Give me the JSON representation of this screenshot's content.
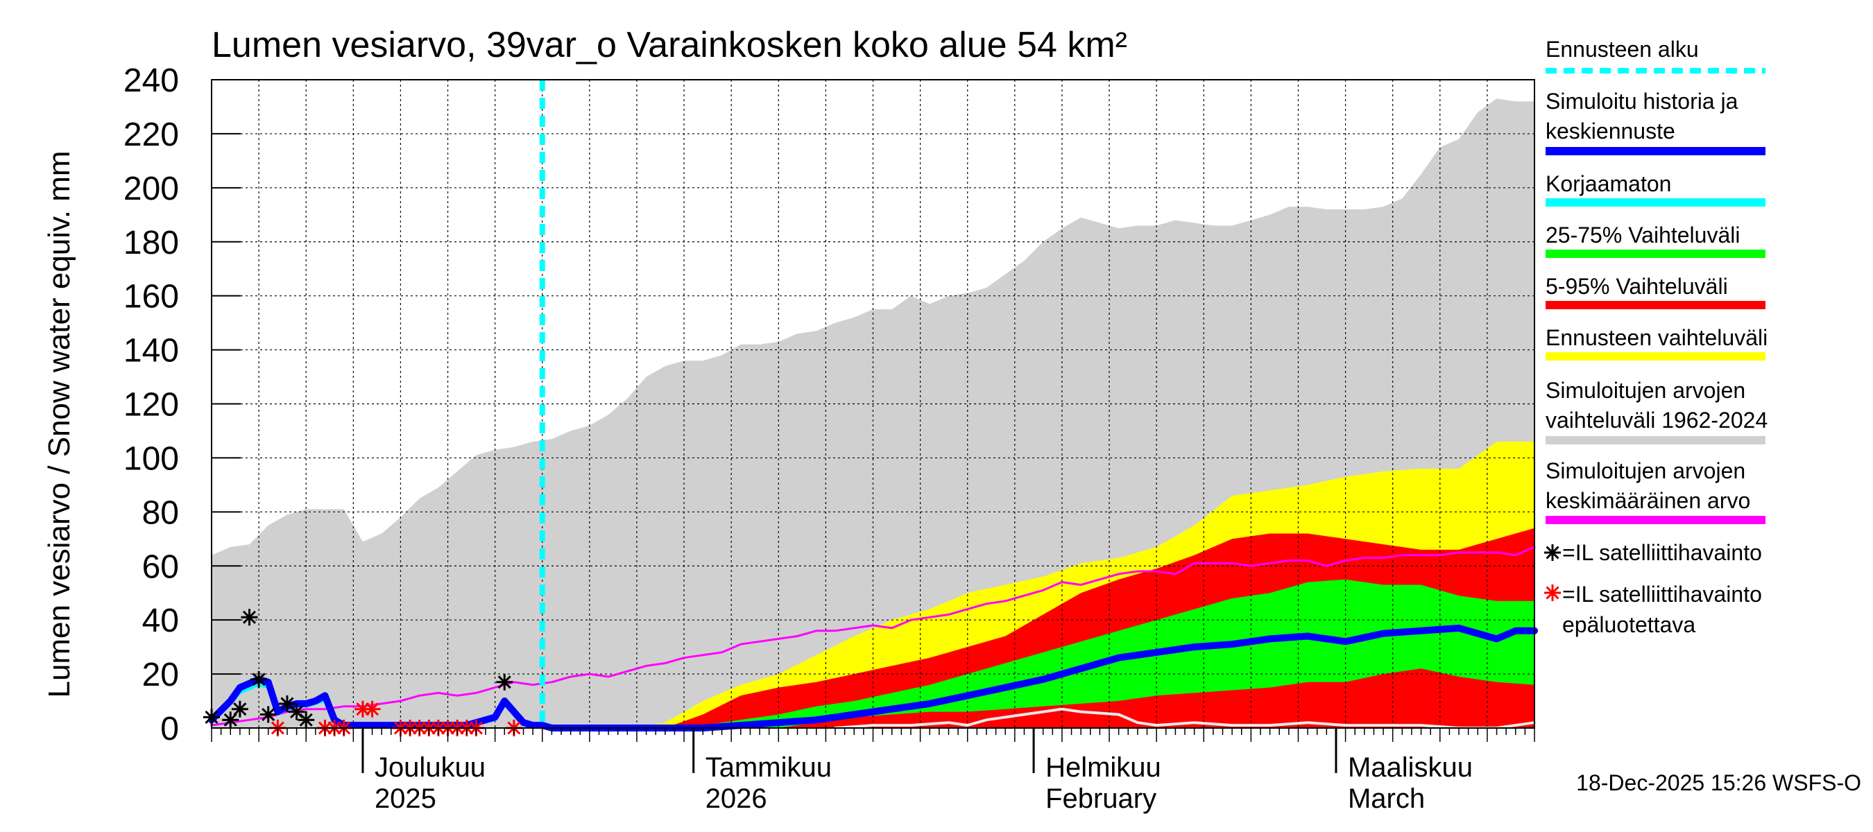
{
  "chart_data": {
    "type": "area",
    "title": "Lumen vesiarvo, 39var_o Varainkosken koko alue 54 km²",
    "ylabel": "Lumen vesiarvo / Snow water equiv.    mm",
    "xlabel": "",
    "ylim": [
      0,
      240
    ],
    "yticks": [
      0,
      20,
      40,
      60,
      80,
      100,
      120,
      140,
      160,
      180,
      200,
      220,
      240
    ],
    "x_start_day": 0,
    "x_end_day": 140,
    "forecast_start_day": 35,
    "month_labels": [
      {
        "day": 16,
        "line1": "Joulukuu",
        "line2": "2025"
      },
      {
        "day": 51,
        "line1": "Tammikuu",
        "line2": "2026"
      },
      {
        "day": 87,
        "line1": "Helmikuu",
        "line2": "February"
      },
      {
        "day": 119,
        "line1": "Maaliskuu",
        "line2": "March"
      }
    ],
    "series": [
      {
        "name": "Simuloitujen arvojen vaihteluväli 1962-2024",
        "kind": "band",
        "color": "#d0d0d0",
        "x": [
          0,
          2,
          4,
          6,
          8,
          10,
          12,
          14,
          16,
          18,
          20,
          22,
          24,
          26,
          28,
          30,
          32,
          34,
          36,
          38,
          40,
          42,
          44,
          46,
          48,
          50,
          52,
          54,
          56,
          58,
          60,
          62,
          64,
          66,
          68,
          70,
          72,
          74,
          76,
          78,
          80,
          82,
          84,
          86,
          88,
          90,
          92,
          94,
          96,
          98,
          100,
          102,
          104,
          106,
          108,
          110,
          112,
          114,
          116,
          118,
          120,
          122,
          124,
          126,
          128,
          130,
          132,
          134,
          136,
          138,
          140
        ],
        "lower": [
          0,
          0,
          0,
          0,
          0,
          0,
          0,
          0,
          0,
          0,
          0,
          0,
          0,
          0,
          0,
          0,
          0,
          0,
          0,
          0,
          0,
          0,
          0,
          0,
          0,
          0,
          0,
          0,
          0,
          0,
          0,
          0,
          0,
          0,
          0,
          0,
          0,
          0,
          0,
          0,
          0,
          0,
          0,
          0,
          0,
          0,
          0,
          0,
          0,
          0,
          0,
          0,
          0,
          0,
          0,
          0,
          0,
          0,
          0,
          0,
          0,
          0,
          0,
          0,
          0,
          0,
          0,
          0,
          0,
          0,
          0
        ],
        "upper": [
          64,
          67,
          68,
          75,
          79,
          81,
          81,
          81,
          69,
          72,
          78,
          85,
          89,
          95,
          101,
          103,
          104,
          106,
          107,
          110,
          112,
          116,
          122,
          130,
          134,
          136,
          136,
          138,
          142,
          142,
          143,
          146,
          147,
          150,
          152,
          155,
          155,
          160,
          157,
          160,
          161,
          163,
          168,
          173,
          180,
          185,
          189,
          187,
          185,
          186,
          186,
          188,
          187,
          186,
          186,
          188,
          190,
          193,
          193,
          192,
          192,
          192,
          193,
          196,
          205,
          215,
          218,
          228,
          233,
          232,
          232
        ]
      },
      {
        "name": "Ennusteen vaihteluväli",
        "kind": "band",
        "color": "#ffff00",
        "x": [
          35,
          40,
          44,
          48,
          52,
          56,
          60,
          64,
          68,
          72,
          76,
          80,
          84,
          88,
          92,
          96,
          100,
          104,
          108,
          112,
          116,
          120,
          124,
          128,
          132,
          136,
          140
        ],
        "lower": [
          0,
          0,
          0,
          0,
          0,
          0,
          0,
          0,
          0,
          0,
          0,
          0,
          0,
          0,
          0,
          0,
          0,
          0,
          0,
          0,
          0,
          0,
          0,
          0,
          0,
          0,
          0
        ],
        "upper": [
          0,
          0,
          0,
          2,
          10,
          16,
          20,
          27,
          34,
          40,
          44,
          50,
          53,
          56,
          61,
          63,
          67,
          75,
          86,
          88,
          90,
          93,
          95,
          96,
          96,
          106,
          106
        ]
      },
      {
        "name": "5-95% Vaihteluväli",
        "kind": "band",
        "color": "#ff0000",
        "x": [
          35,
          40,
          44,
          48,
          52,
          56,
          60,
          64,
          68,
          72,
          76,
          80,
          84,
          88,
          92,
          96,
          100,
          104,
          108,
          112,
          116,
          120,
          124,
          128,
          132,
          136,
          140
        ],
        "lower": [
          0,
          0,
          0,
          0,
          0,
          0,
          0,
          0,
          0,
          0,
          0,
          0,
          0,
          0,
          0,
          0,
          0,
          0,
          0,
          0,
          0,
          0,
          0,
          0,
          0,
          0,
          0
        ],
        "upper": [
          0,
          0,
          0,
          0,
          5,
          12,
          15,
          17,
          20,
          23,
          26,
          30,
          34,
          42,
          50,
          55,
          59,
          64,
          70,
          72,
          72,
          70,
          68,
          66,
          66,
          70,
          74
        ]
      },
      {
        "name": "25-75% Vaihteluväli",
        "kind": "band",
        "color": "#00ff00",
        "x": [
          35,
          40,
          44,
          48,
          52,
          56,
          60,
          64,
          68,
          72,
          76,
          80,
          84,
          88,
          92,
          96,
          100,
          104,
          108,
          112,
          116,
          120,
          124,
          128,
          132,
          136,
          140
        ],
        "lower": [
          0,
          0,
          0,
          0,
          0,
          0,
          0,
          2,
          4,
          5,
          6,
          6,
          7,
          8,
          9,
          10,
          12,
          13,
          14,
          15,
          17,
          17,
          20,
          22,
          19,
          17,
          16
        ],
        "upper": [
          0,
          0,
          0,
          0,
          1,
          3,
          5,
          8,
          10,
          13,
          16,
          20,
          24,
          28,
          32,
          36,
          40,
          44,
          48,
          50,
          54,
          55,
          53,
          53,
          49,
          47,
          47
        ]
      },
      {
        "name": "Simuloitujen arvojen keskimääräinen arvo",
        "kind": "line",
        "color": "#ff00ff",
        "width": 3,
        "x": [
          0,
          4,
          6,
          8,
          10,
          12,
          14,
          16,
          18,
          20,
          22,
          24,
          26,
          28,
          30,
          32,
          34,
          36,
          38,
          40,
          42,
          44,
          46,
          48,
          50,
          52,
          54,
          56,
          58,
          60,
          62,
          64,
          66,
          68,
          70,
          72,
          74,
          76,
          78,
          80,
          82,
          84,
          86,
          88,
          90,
          92,
          94,
          96,
          98,
          100,
          102,
          104,
          106,
          108,
          110,
          112,
          114,
          116,
          118,
          120,
          122,
          124,
          126,
          128,
          130,
          132,
          134,
          136,
          138,
          140
        ],
        "y": [
          1,
          3,
          4,
          6,
          7,
          7,
          8,
          8,
          9,
          10,
          12,
          13,
          12,
          13,
          15,
          17,
          16,
          17,
          19,
          20,
          19,
          21,
          23,
          24,
          26,
          27,
          28,
          31,
          32,
          33,
          34,
          36,
          36,
          37,
          38,
          37,
          40,
          41,
          42,
          44,
          46,
          47,
          49,
          51,
          54,
          53,
          55,
          57,
          58,
          58,
          57,
          61,
          61,
          61,
          60,
          61,
          62,
          62,
          60,
          62,
          63,
          63,
          64,
          64,
          64,
          65,
          65,
          65,
          64,
          67
        ]
      },
      {
        "name": "Korjaamaton",
        "kind": "line",
        "color": "#00ffff",
        "width": 4,
        "x": [
          0,
          2,
          3,
          5,
          6,
          7,
          8,
          9,
          10,
          11,
          12,
          13,
          14,
          15,
          16,
          17,
          18,
          27,
          30,
          31,
          32,
          33,
          34,
          35,
          36,
          37,
          38,
          40
        ],
        "y": [
          3,
          9,
          13,
          16,
          15,
          5,
          7,
          8,
          8,
          9,
          10,
          2,
          1,
          1,
          1,
          1,
          1,
          1,
          3,
          9,
          5,
          2,
          1,
          1,
          1,
          0,
          0,
          0
        ]
      },
      {
        "name": "Simuloitu historia ja keskiennuste",
        "kind": "line",
        "color": "#0000ff",
        "width": 10,
        "x": [
          0,
          2,
          3,
          5,
          6,
          7,
          8,
          9,
          10,
          11,
          12,
          13,
          14,
          15,
          16,
          17,
          18,
          27,
          30,
          31,
          32,
          33,
          34,
          35,
          36,
          38,
          40,
          44,
          48,
          52,
          56,
          60,
          64,
          68,
          72,
          76,
          80,
          84,
          88,
          92,
          96,
          100,
          104,
          108,
          112,
          116,
          120,
          124,
          128,
          132,
          136,
          138,
          140
        ],
        "y": [
          3,
          10,
          15,
          18,
          17,
          6,
          8,
          9,
          9,
          10,
          12,
          3,
          1,
          1,
          1,
          1,
          1,
          1,
          4,
          10,
          6,
          2,
          1,
          1,
          0,
          0,
          0,
          0,
          0,
          0,
          1,
          2,
          3,
          5,
          7,
          9,
          12,
          15,
          18,
          22,
          26,
          28,
          30,
          31,
          33,
          34,
          32,
          35,
          36,
          37,
          33,
          36,
          36
        ]
      },
      {
        "name": "Low member",
        "kind": "line",
        "color": "#e8e8e8",
        "width": 4,
        "x": [
          66,
          70,
          74,
          78,
          80,
          82,
          84,
          86,
          88,
          90,
          92,
          96,
          98,
          100,
          104,
          108,
          112,
          116,
          120,
          124,
          128,
          132,
          136,
          140
        ],
        "y": [
          0,
          1,
          1,
          2,
          1,
          3,
          4,
          5,
          6,
          7,
          6,
          5,
          2,
          1,
          2,
          1,
          1,
          2,
          1,
          1,
          1,
          0,
          0,
          2
        ]
      }
    ],
    "observations_black": [
      {
        "x": 0,
        "y": 4
      },
      {
        "x": 2,
        "y": 3
      },
      {
        "x": 3,
        "y": 7
      },
      {
        "x": 4,
        "y": 41
      },
      {
        "x": 5,
        "y": 18
      },
      {
        "x": 6,
        "y": 5
      },
      {
        "x": 8,
        "y": 9
      },
      {
        "x": 9,
        "y": 6
      },
      {
        "x": 10,
        "y": 3
      },
      {
        "x": 31,
        "y": 17
      }
    ],
    "observations_red": [
      {
        "x": 7,
        "y": 0
      },
      {
        "x": 12,
        "y": 0
      },
      {
        "x": 13,
        "y": 0
      },
      {
        "x": 14,
        "y": 0
      },
      {
        "x": 16,
        "y": 7
      },
      {
        "x": 17,
        "y": 7
      },
      {
        "x": 20,
        "y": 0
      },
      {
        "x": 21,
        "y": 0
      },
      {
        "x": 22,
        "y": 0
      },
      {
        "x": 23,
        "y": 0
      },
      {
        "x": 24,
        "y": 0
      },
      {
        "x": 25,
        "y": 0
      },
      {
        "x": 26,
        "y": 0
      },
      {
        "x": 27,
        "y": 0
      },
      {
        "x": 28,
        "y": 0
      },
      {
        "x": 32,
        "y": 0
      }
    ]
  },
  "legend": [
    {
      "kind": "dash",
      "color": "#00ffff",
      "lines": [
        "Ennusteen alku"
      ]
    },
    {
      "kind": "line",
      "color": "#0000ff",
      "lines": [
        "Simuloitu historia ja",
        "keskiennuste"
      ]
    },
    {
      "kind": "line",
      "color": "#00ffff",
      "lines": [
        "Korjaamaton"
      ]
    },
    {
      "kind": "line",
      "color": "#00ff00",
      "lines": [
        "25-75% Vaihteluväli"
      ]
    },
    {
      "kind": "line",
      "color": "#ff0000",
      "lines": [
        "5-95% Vaihteluväli"
      ]
    },
    {
      "kind": "line",
      "color": "#ffff00",
      "lines": [
        "Ennusteen vaihteluväli"
      ]
    },
    {
      "kind": "line",
      "color": "#d0d0d0",
      "lines": [
        "Simuloitujen arvojen",
        "vaihteluväli 1962-2024"
      ]
    },
    {
      "kind": "line",
      "color": "#ff00ff",
      "lines": [
        "Simuloitujen arvojen",
        "keskimääräinen arvo"
      ]
    },
    {
      "kind": "star",
      "color": "#000000",
      "lines": [
        "=IL satelliittihavainto"
      ]
    },
    {
      "kind": "star",
      "color": "#ff0000",
      "lines": [
        "=IL satelliittihavainto",
        "epäluotettava"
      ]
    }
  ],
  "footer": "18-Dec-2025 15:26 WSFS-O"
}
